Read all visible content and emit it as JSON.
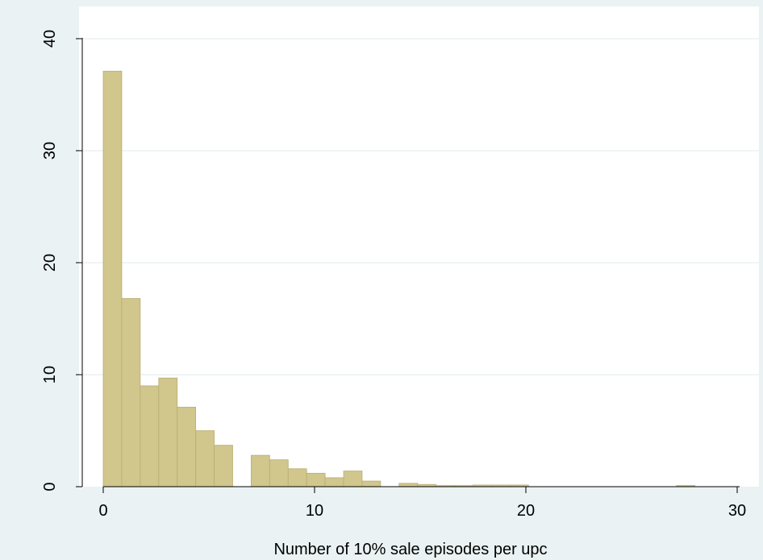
{
  "chart_data": {
    "type": "bar",
    "title": "",
    "xlabel": "Number of 10% sale episodes per upc",
    "ylabel": "",
    "xlim": [
      -1,
      30.5
    ],
    "ylim": [
      0,
      41
    ],
    "xticks": [
      "0",
      "10",
      "20",
      "30"
    ],
    "xtick_values": [
      0,
      10,
      20,
      30
    ],
    "yticks": [
      "0",
      "10",
      "20",
      "30",
      "40"
    ],
    "ytick_values": [
      0,
      10,
      20,
      30,
      40
    ],
    "grid": true,
    "legend": "none",
    "bin_width": 0.875,
    "bins": [
      {
        "x0": 0.0,
        "value": 37.1
      },
      {
        "x0": 0.875,
        "value": 16.8
      },
      {
        "x0": 1.75,
        "value": 9.0
      },
      {
        "x0": 2.625,
        "value": 9.7
      },
      {
        "x0": 3.5,
        "value": 7.1
      },
      {
        "x0": 4.375,
        "value": 5.0
      },
      {
        "x0": 5.25,
        "value": 3.7
      },
      {
        "x0": 7.0,
        "value": 2.8
      },
      {
        "x0": 7.875,
        "value": 2.4
      },
      {
        "x0": 8.75,
        "value": 1.6
      },
      {
        "x0": 9.625,
        "value": 1.2
      },
      {
        "x0": 10.5,
        "value": 0.8
      },
      {
        "x0": 11.375,
        "value": 1.4
      },
      {
        "x0": 12.25,
        "value": 0.5
      },
      {
        "x0": 14.0,
        "value": 0.3
      },
      {
        "x0": 14.875,
        "value": 0.2
      },
      {
        "x0": 15.75,
        "value": 0.1
      },
      {
        "x0": 16.625,
        "value": 0.1
      },
      {
        "x0": 17.5,
        "value": 0.15
      },
      {
        "x0": 18.375,
        "value": 0.15
      },
      {
        "x0": 19.25,
        "value": 0.15
      },
      {
        "x0": 27.125,
        "value": 0.1
      }
    ],
    "colors": {
      "bar_fill": "#D1C68C",
      "bar_stroke": "#B8AD73",
      "plot_bg": "#FFFFFF",
      "outer_bg": "#EAF2F3",
      "grid": "#EAF2F3",
      "axis": "#000000"
    }
  }
}
